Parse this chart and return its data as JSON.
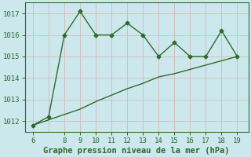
{
  "x": [
    6,
    7,
    8,
    9,
    10,
    11,
    12,
    13,
    14,
    15,
    16,
    17,
    18,
    19
  ],
  "y_line1": [
    1011.8,
    1012.2,
    1016.0,
    1017.1,
    1016.0,
    1016.0,
    1016.55,
    1016.0,
    1015.0,
    1015.65,
    1015.0,
    1015.0,
    1016.2,
    1015.0
  ],
  "y_line2": [
    1011.8,
    1012.05,
    1012.3,
    1012.55,
    1012.9,
    1013.2,
    1013.5,
    1013.75,
    1014.05,
    1014.2,
    1014.4,
    1014.6,
    1014.8,
    1015.0
  ],
  "line_color": "#2d6a2d",
  "bg_color": "#cce8ec",
  "grid_color_minor": "#d4b8b8",
  "grid_color_major": "#c8c8c8",
  "xlabel": "Graphe pression niveau de la mer (hPa)",
  "xlim": [
    5.5,
    19.7
  ],
  "ylim": [
    1011.5,
    1017.5
  ],
  "yticks": [
    1012,
    1013,
    1014,
    1015,
    1016,
    1017
  ],
  "xticks": [
    6,
    8,
    9,
    10,
    11,
    12,
    13,
    14,
    15,
    16,
    17,
    18,
    19
  ],
  "x_gridlines": [
    6,
    7,
    8,
    9,
    10,
    11,
    12,
    13,
    14,
    15,
    16,
    17,
    18,
    19
  ],
  "tick_label_fontsize": 6.5,
  "xlabel_fontsize": 7.5,
  "marker_size": 2.5,
  "linewidth": 1.0
}
